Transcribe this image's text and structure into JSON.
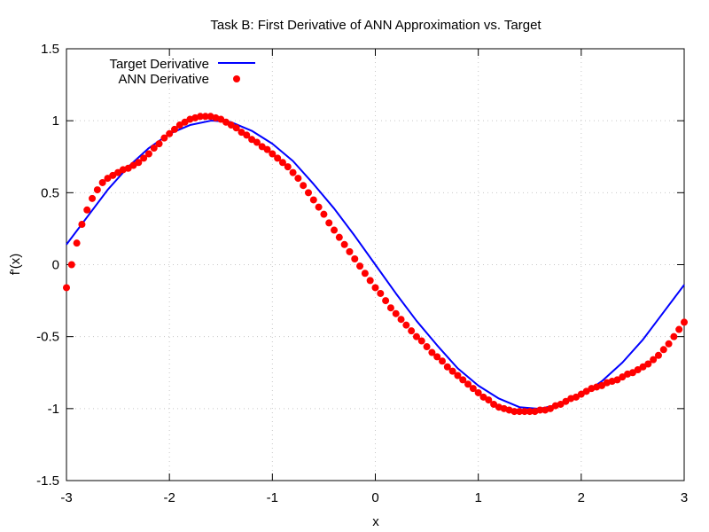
{
  "chart_data": {
    "type": "line",
    "title": "Task B: First Derivative of ANN Approximation vs. Target",
    "xlabel": "x",
    "ylabel": "f'(x)",
    "xlim": [
      -3,
      3
    ],
    "ylim": [
      -1.5,
      1.5
    ],
    "xticks": [
      "-3",
      "-2",
      "-1",
      "0",
      "1",
      "2",
      "3"
    ],
    "yticks": [
      "1.5",
      "1",
      "0.5",
      "0",
      "-0.5",
      "-1",
      "-1.5"
    ],
    "grid": true,
    "legend_position": "top-left",
    "series": [
      {
        "name": "Target Derivative",
        "style": "line",
        "color": "#0000ff",
        "x": [
          -3.0,
          -2.8,
          -2.6,
          -2.4,
          -2.2,
          -2.0,
          -1.8,
          -1.6,
          -1.57,
          -1.4,
          -1.2,
          -1.0,
          -0.8,
          -0.6,
          -0.4,
          -0.2,
          0.0,
          0.2,
          0.4,
          0.6,
          0.8,
          1.0,
          1.2,
          1.4,
          1.57,
          1.6,
          1.8,
          2.0,
          2.2,
          2.4,
          2.6,
          2.8,
          3.0
        ],
        "y": [
          0.14,
          0.33,
          0.52,
          0.68,
          0.81,
          0.91,
          0.97,
          1.0,
          1.0,
          0.99,
          0.93,
          0.84,
          0.72,
          0.56,
          0.39,
          0.2,
          0.0,
          -0.2,
          -0.39,
          -0.56,
          -0.72,
          -0.84,
          -0.93,
          -0.99,
          -1.0,
          -1.0,
          -0.97,
          -0.91,
          -0.81,
          -0.68,
          -0.52,
          -0.33,
          -0.14
        ]
      },
      {
        "name": "ANN Derivative",
        "style": "points",
        "color": "#ff0000",
        "x": [
          -3.0,
          -2.95,
          -2.9,
          -2.85,
          -2.8,
          -2.75,
          -2.7,
          -2.65,
          -2.6,
          -2.55,
          -2.5,
          -2.45,
          -2.4,
          -2.35,
          -2.3,
          -2.25,
          -2.2,
          -2.15,
          -2.1,
          -2.05,
          -2.0,
          -1.95,
          -1.9,
          -1.85,
          -1.8,
          -1.75,
          -1.7,
          -1.65,
          -1.6,
          -1.55,
          -1.5,
          -1.45,
          -1.4,
          -1.35,
          -1.3,
          -1.25,
          -1.2,
          -1.15,
          -1.1,
          -1.05,
          -1.0,
          -0.95,
          -0.9,
          -0.85,
          -0.8,
          -0.75,
          -0.7,
          -0.65,
          -0.6,
          -0.55,
          -0.5,
          -0.45,
          -0.4,
          -0.35,
          -0.3,
          -0.25,
          -0.2,
          -0.15,
          -0.1,
          -0.05,
          0.0,
          0.05,
          0.1,
          0.15,
          0.2,
          0.25,
          0.3,
          0.35,
          0.4,
          0.45,
          0.5,
          0.55,
          0.6,
          0.65,
          0.7,
          0.75,
          0.8,
          0.85,
          0.9,
          0.95,
          1.0,
          1.05,
          1.1,
          1.15,
          1.2,
          1.25,
          1.3,
          1.35,
          1.4,
          1.45,
          1.5,
          1.55,
          1.6,
          1.65,
          1.7,
          1.75,
          1.8,
          1.85,
          1.9,
          1.95,
          2.0,
          2.05,
          2.1,
          2.15,
          2.2,
          2.25,
          2.3,
          2.35,
          2.4,
          2.45,
          2.5,
          2.55,
          2.6,
          2.65,
          2.7,
          2.75,
          2.8,
          2.85,
          2.9,
          2.95,
          3.0
        ],
        "y": [
          -0.16,
          0.0,
          0.15,
          0.28,
          0.38,
          0.46,
          0.52,
          0.57,
          0.6,
          0.62,
          0.64,
          0.66,
          0.67,
          0.69,
          0.71,
          0.74,
          0.77,
          0.81,
          0.84,
          0.88,
          0.91,
          0.94,
          0.97,
          0.99,
          1.01,
          1.02,
          1.03,
          1.03,
          1.03,
          1.02,
          1.01,
          0.99,
          0.97,
          0.95,
          0.92,
          0.9,
          0.87,
          0.85,
          0.82,
          0.8,
          0.77,
          0.74,
          0.71,
          0.68,
          0.64,
          0.6,
          0.55,
          0.5,
          0.45,
          0.4,
          0.35,
          0.29,
          0.24,
          0.19,
          0.14,
          0.09,
          0.04,
          -0.01,
          -0.06,
          -0.11,
          -0.16,
          -0.2,
          -0.25,
          -0.3,
          -0.34,
          -0.38,
          -0.42,
          -0.46,
          -0.5,
          -0.53,
          -0.57,
          -0.61,
          -0.64,
          -0.67,
          -0.71,
          -0.74,
          -0.77,
          -0.8,
          -0.83,
          -0.86,
          -0.89,
          -0.92,
          -0.94,
          -0.97,
          -0.99,
          -1.0,
          -1.01,
          -1.02,
          -1.02,
          -1.02,
          -1.02,
          -1.02,
          -1.01,
          -1.01,
          -1.0,
          -0.98,
          -0.97,
          -0.95,
          -0.93,
          -0.92,
          -0.9,
          -0.88,
          -0.86,
          -0.85,
          -0.84,
          -0.82,
          -0.81,
          -0.8,
          -0.78,
          -0.76,
          -0.75,
          -0.73,
          -0.71,
          -0.69,
          -0.66,
          -0.63,
          -0.59,
          -0.55,
          -0.5,
          -0.45,
          -0.4
        ]
      }
    ]
  }
}
